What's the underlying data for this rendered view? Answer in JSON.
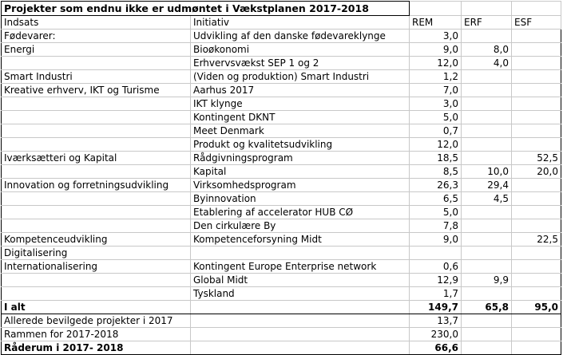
{
  "title": "Projekter som endnu ikke er udmøntet i Vækstplanen 2017-2018",
  "headers": [
    "Indsats",
    "Initiativ",
    "REM",
    "ERF",
    "ESF"
  ],
  "rows": [
    [
      "Fødevarer:",
      "Udvikling af den danske fødevareklynge",
      "3,0",
      "",
      ""
    ],
    [
      "Energi",
      "Bioøkonomi",
      "9,0",
      "8,0",
      ""
    ],
    [
      "",
      "Erhvervsvækst SEP 1 og 2",
      "12,0",
      "4,0",
      ""
    ],
    [
      "Smart Industri",
      "(Viden og produktion) Smart Industri",
      "1,2",
      "",
      ""
    ],
    [
      "Kreative erhverv, IKT og Turisme",
      "Aarhus 2017",
      "7,0",
      "",
      ""
    ],
    [
      "",
      "IKT klynge",
      "3,0",
      "",
      ""
    ],
    [
      "",
      "Kontingent DKNT",
      "5,0",
      "",
      ""
    ],
    [
      "",
      "Meet Denmark",
      "0,7",
      "",
      ""
    ],
    [
      "",
      "Produkt og kvalitetsudvikling",
      "12,0",
      "",
      ""
    ],
    [
      "Iværksætteri og Kapital",
      "Rådgivningsprogram",
      "18,5",
      "",
      "52,5"
    ],
    [
      "",
      "Kapital",
      "8,5",
      "10,0",
      "20,0"
    ],
    [
      "Innovation og forretningsudvikling",
      "Virksomhedsprogram",
      "26,3",
      "29,4",
      ""
    ],
    [
      "",
      "Byinnovation",
      "6,5",
      "4,5",
      ""
    ],
    [
      "",
      "Etablering af accelerator HUB CØ",
      "5,0",
      "",
      ""
    ],
    [
      "",
      "Den cirkulære By",
      "7,8",
      "",
      ""
    ],
    [
      "Kompetenceudvikling",
      "Kompetenceforsyning Midt",
      "9,0",
      "",
      "22,5"
    ],
    [
      "Digitalisering",
      "",
      "",
      "",
      ""
    ],
    [
      "Internationalisering",
      "Kontingent Europe Enterprise network",
      "0,6",
      "",
      ""
    ],
    [
      "",
      "Global Midt",
      "12,9",
      "9,9",
      ""
    ],
    [
      "",
      "Tyskland",
      "1,7",
      "",
      ""
    ]
  ],
  "total": [
    "I alt",
    "",
    "149,7",
    "65,8",
    "95,0"
  ],
  "extra": [
    [
      "Allerede bevilgede projekter i 2017",
      "",
      "13,7",
      "",
      ""
    ],
    [
      "Rammen for 2017-2018",
      "",
      "230,0",
      "",
      ""
    ]
  ],
  "final": [
    "Råderum i 2017- 2018",
    "",
    "66,6",
    "",
    ""
  ]
}
